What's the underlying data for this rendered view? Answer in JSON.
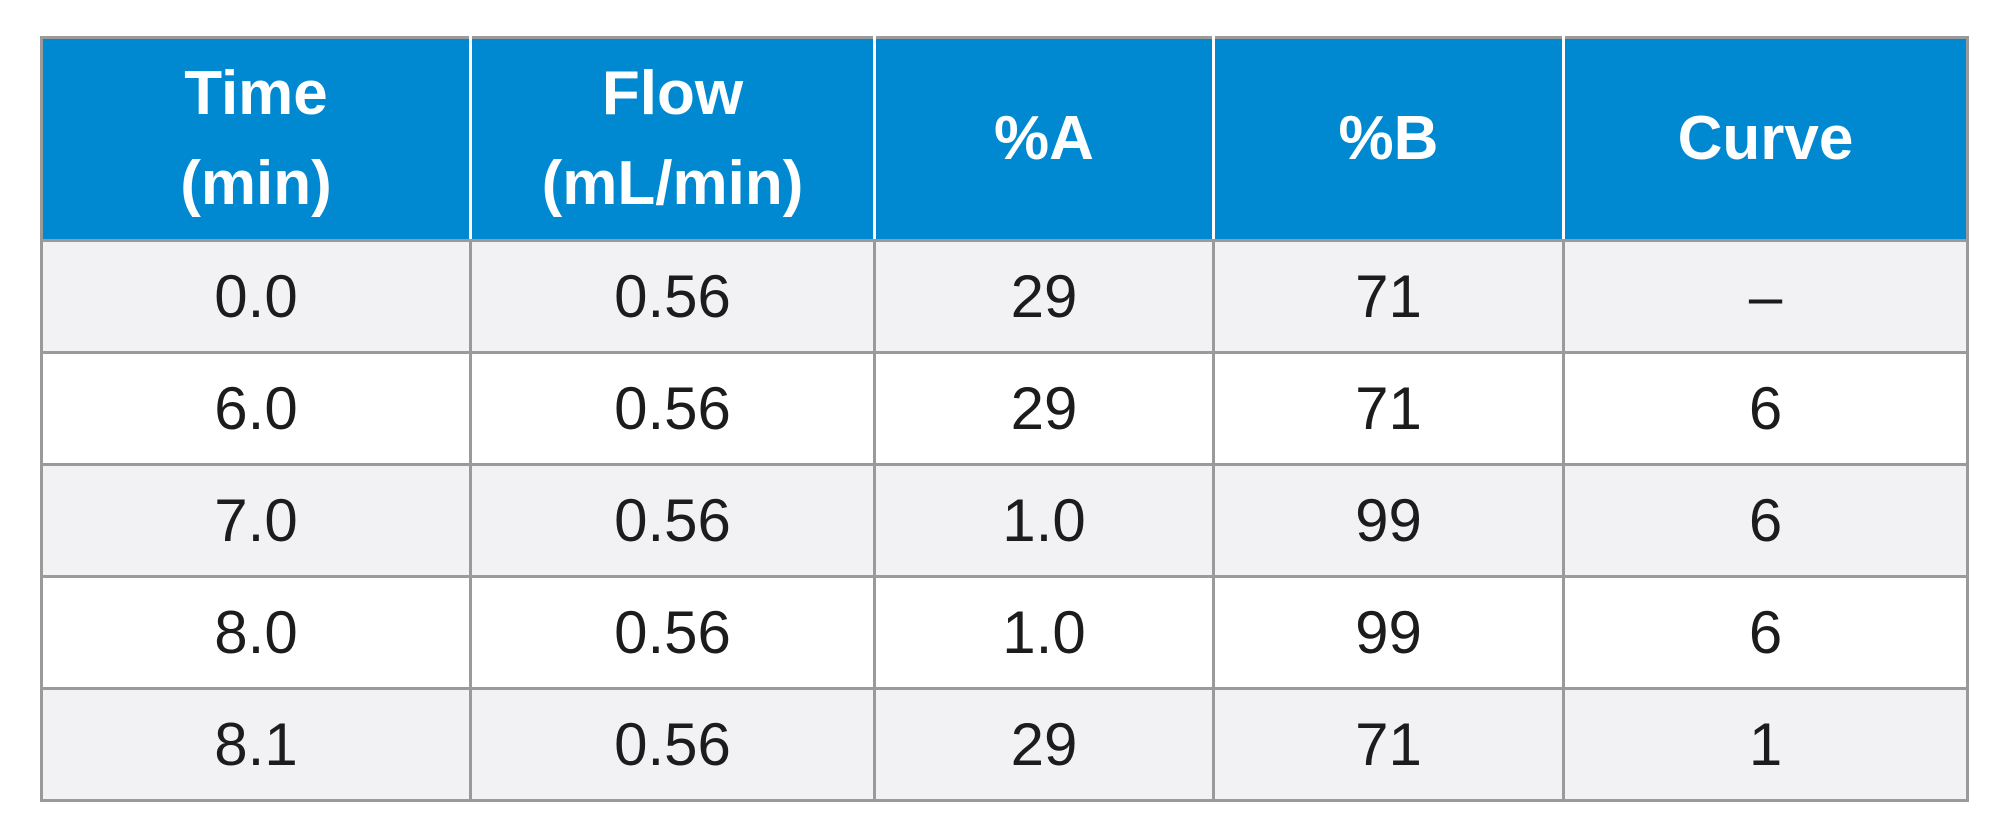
{
  "table": {
    "headers": [
      [
        "Time",
        "(min)"
      ],
      [
        "Flow",
        "(mL/min)"
      ],
      [
        "%A"
      ],
      [
        "%B"
      ],
      [
        "Curve"
      ]
    ],
    "rows": [
      [
        "0.0",
        "0.56",
        "29",
        "71",
        "–"
      ],
      [
        "6.0",
        "0.56",
        "29",
        "71",
        "6"
      ],
      [
        "7.0",
        "0.56",
        "1.0",
        "99",
        "6"
      ],
      [
        "8.0",
        "0.56",
        "1.0",
        "99",
        "6"
      ],
      [
        "8.1",
        "0.56",
        "29",
        "71",
        "1"
      ]
    ]
  },
  "colors": {
    "header_bg": "#0089d1",
    "header_text": "#ffffff",
    "row_alt_bg": "#f2f2f4",
    "grid": "#9a9a9a"
  }
}
